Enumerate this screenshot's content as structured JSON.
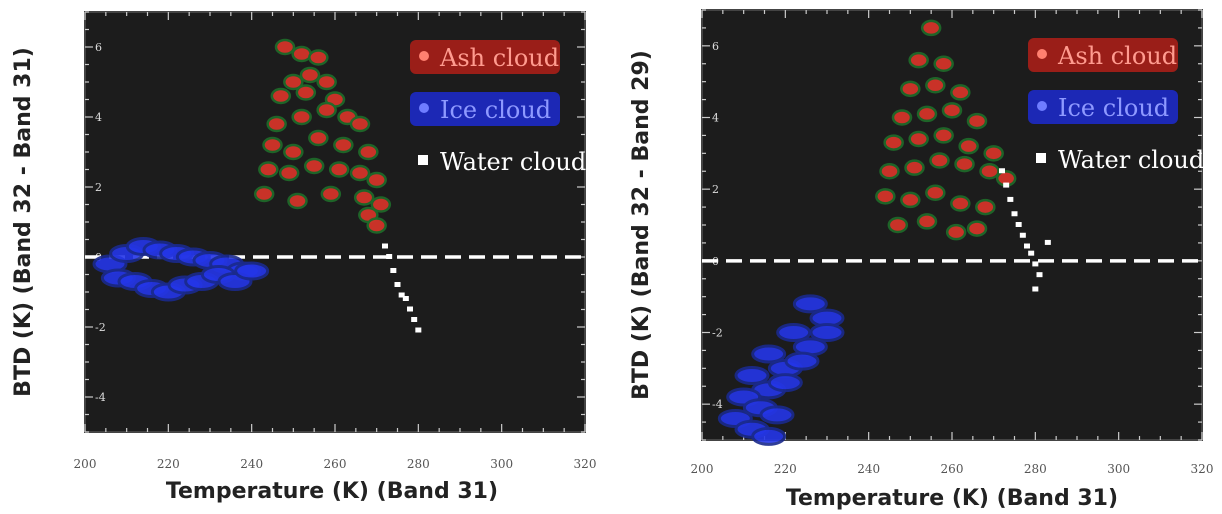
{
  "colors": {
    "plot_bg": "#1c1c1c",
    "ash": "#d8342a",
    "ash_label_bg": "#b01e18",
    "ice": "#2436e8",
    "ice_label_bg": "#1c2ad0",
    "water": "#ffffff",
    "outline_green": "#1f6b2a",
    "outline_blue": "#1a2a8c",
    "dashed_line": "#ffffff"
  },
  "chart_data": [
    {
      "type": "scatter",
      "xlabel": "Temperature (K) (Band 31)",
      "ylabel": "BTD (K) (Band 32 - Band 31)",
      "xlim": [
        200,
        320
      ],
      "ylim": [
        -5,
        7
      ],
      "x_ticks": [
        "200",
        "220",
        "240",
        "260",
        "280",
        "300",
        "320"
      ],
      "y_ticks": [
        "6",
        "4",
        "2",
        "0",
        "-2",
        "-4"
      ],
      "reference_line_y": 0,
      "legend": [
        {
          "name": "Ash cloud",
          "icon": "red-circle-icon"
        },
        {
          "name": "Ice cloud",
          "icon": "blue-circle-icon"
        },
        {
          "name": "Water cloud",
          "icon": "white-square-icon"
        }
      ],
      "series": [
        {
          "name": "Ash cloud",
          "points": [
            [
              248,
              6.0
            ],
            [
              252,
              5.8
            ],
            [
              256,
              5.7
            ],
            [
              250,
              5.0
            ],
            [
              254,
              5.2
            ],
            [
              258,
              5.0
            ],
            [
              247,
              4.6
            ],
            [
              253,
              4.7
            ],
            [
              260,
              4.5
            ],
            [
              246,
              3.8
            ],
            [
              252,
              4.0
            ],
            [
              258,
              4.2
            ],
            [
              263,
              4.0
            ],
            [
              266,
              3.8
            ],
            [
              245,
              3.2
            ],
            [
              250,
              3.0
            ],
            [
              256,
              3.4
            ],
            [
              262,
              3.2
            ],
            [
              268,
              3.0
            ],
            [
              244,
              2.5
            ],
            [
              249,
              2.4
            ],
            [
              255,
              2.6
            ],
            [
              261,
              2.5
            ],
            [
              266,
              2.4
            ],
            [
              270,
              2.2
            ],
            [
              243,
              1.8
            ],
            [
              251,
              1.6
            ],
            [
              259,
              1.8
            ],
            [
              267,
              1.7
            ],
            [
              271,
              1.5
            ],
            [
              268,
              1.2
            ],
            [
              270,
              0.9
            ]
          ]
        },
        {
          "name": "Ice cloud",
          "points": [
            [
              206,
              -0.2
            ],
            [
              210,
              0.1
            ],
            [
              214,
              0.3
            ],
            [
              218,
              0.2
            ],
            [
              222,
              0.1
            ],
            [
              226,
              0.0
            ],
            [
              230,
              -0.1
            ],
            [
              234,
              -0.2
            ],
            [
              238,
              -0.4
            ],
            [
              208,
              -0.6
            ],
            [
              212,
              -0.7
            ],
            [
              216,
              -0.9
            ],
            [
              220,
              -1.0
            ],
            [
              224,
              -0.8
            ],
            [
              228,
              -0.7
            ],
            [
              232,
              -0.5
            ],
            [
              236,
              -0.7
            ],
            [
              240,
              -0.4
            ]
          ]
        },
        {
          "name": "Water cloud",
          "points": [
            [
              272,
              0.3
            ],
            [
              273,
              0.0
            ],
            [
              274,
              -0.4
            ],
            [
              275,
              -0.8
            ],
            [
              276,
              -1.1
            ],
            [
              277,
              -1.2
            ],
            [
              278,
              -1.5
            ],
            [
              279,
              -1.8
            ],
            [
              280,
              -2.1
            ]
          ]
        }
      ]
    },
    {
      "type": "scatter",
      "xlabel": "Temperature (K) (Band 31)",
      "ylabel": "BTD (K) (Band 32 - Band 29)",
      "xlim": [
        200,
        320
      ],
      "ylim": [
        -5,
        7
      ],
      "x_ticks": [
        "200",
        "220",
        "240",
        "260",
        "280",
        "300",
        "320"
      ],
      "y_ticks": [
        "6",
        "4",
        "2",
        "0",
        "-2",
        "-4"
      ],
      "reference_line_y": 0,
      "legend": [
        {
          "name": "Ash cloud",
          "icon": "red-circle-icon"
        },
        {
          "name": "Ice cloud",
          "icon": "blue-circle-icon"
        },
        {
          "name": "Water cloud",
          "icon": "white-square-icon"
        }
      ],
      "series": [
        {
          "name": "Ash cloud",
          "points": [
            [
              255,
              6.5
            ],
            [
              252,
              5.6
            ],
            [
              258,
              5.5
            ],
            [
              250,
              4.8
            ],
            [
              256,
              4.9
            ],
            [
              262,
              4.7
            ],
            [
              248,
              4.0
            ],
            [
              254,
              4.1
            ],
            [
              260,
              4.2
            ],
            [
              266,
              3.9
            ],
            [
              246,
              3.3
            ],
            [
              252,
              3.4
            ],
            [
              258,
              3.5
            ],
            [
              264,
              3.2
            ],
            [
              270,
              3.0
            ],
            [
              245,
              2.5
            ],
            [
              251,
              2.6
            ],
            [
              257,
              2.8
            ],
            [
              263,
              2.7
            ],
            [
              269,
              2.5
            ],
            [
              273,
              2.3
            ],
            [
              244,
              1.8
            ],
            [
              250,
              1.7
            ],
            [
              256,
              1.9
            ],
            [
              262,
              1.6
            ],
            [
              268,
              1.5
            ],
            [
              247,
              1.0
            ],
            [
              254,
              1.1
            ],
            [
              261,
              0.8
            ],
            [
              266,
              0.9
            ]
          ]
        },
        {
          "name": "Ice cloud",
          "points": [
            [
              226,
              -1.2
            ],
            [
              230,
              -1.6
            ],
            [
              222,
              -2.0
            ],
            [
              226,
              -2.4
            ],
            [
              230,
              -2.0
            ],
            [
              216,
              -2.6
            ],
            [
              220,
              -3.0
            ],
            [
              224,
              -2.8
            ],
            [
              212,
              -3.2
            ],
            [
              216,
              -3.6
            ],
            [
              220,
              -3.4
            ],
            [
              210,
              -3.8
            ],
            [
              214,
              -4.1
            ],
            [
              218,
              -4.3
            ],
            [
              208,
              -4.4
            ],
            [
              212,
              -4.7
            ],
            [
              216,
              -4.9
            ]
          ]
        },
        {
          "name": "Water cloud",
          "points": [
            [
              272,
              2.5
            ],
            [
              273,
              2.1
            ],
            [
              274,
              1.7
            ],
            [
              275,
              1.3
            ],
            [
              276,
              1.0
            ],
            [
              277,
              0.7
            ],
            [
              278,
              0.4
            ],
            [
              279,
              0.2
            ],
            [
              280,
              -0.1
            ],
            [
              281,
              -0.4
            ],
            [
              280,
              -0.8
            ],
            [
              283,
              0.5
            ]
          ]
        }
      ]
    }
  ]
}
